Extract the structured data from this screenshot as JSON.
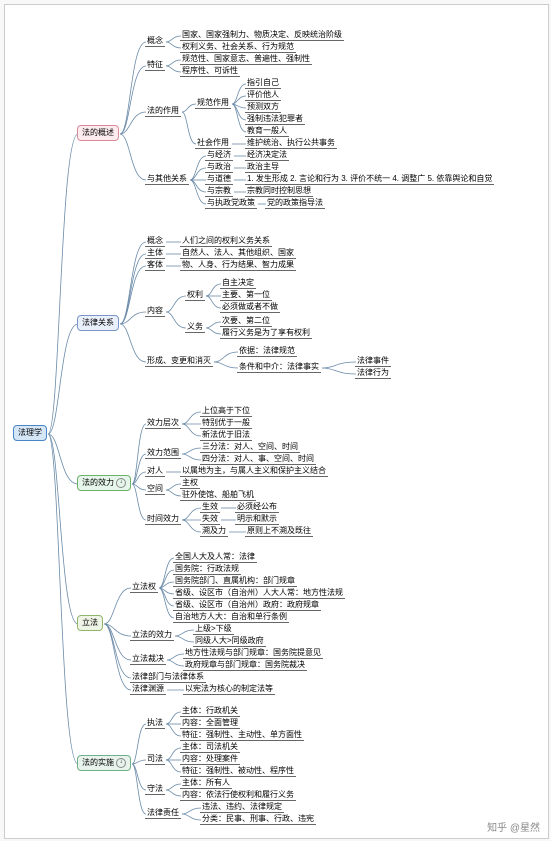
{
  "colors": {
    "root_bg": "#d5e6f7",
    "root_border": "#4a86c5",
    "s1_bg": "#fdecef",
    "s1_border": "#d88a9a",
    "s2_bg": "#eaf0fb",
    "s2_border": "#7a96c8",
    "s3_bg": "#e6f6ea",
    "s3_border": "#6cb06c",
    "s4_bg": "#eef5e6",
    "s4_border": "#8fb56b",
    "s5_bg": "#e8f3ec",
    "s5_border": "#6fb08a",
    "line": "#6a8aa8",
    "text": "#333"
  },
  "root": "法理学",
  "sections": [
    {
      "key": "s1",
      "label": "法的概述"
    },
    {
      "key": "s2",
      "label": "法律关系"
    },
    {
      "key": "s3",
      "label": "法的效力"
    },
    {
      "key": "s4",
      "label": "立法"
    },
    {
      "key": "s5",
      "label": "法的实施"
    }
  ],
  "s1": {
    "gainian": "概念",
    "gainian_items": [
      "国家、国家强制力、物质决定、反映统治阶级",
      "权利义务、社会关系、行为规范"
    ],
    "tezheng": "特征",
    "tezheng_items": [
      "规范性、国家意志、普遍性、强制性",
      "程序性、可诉性"
    ],
    "zuoyong": "法的作用",
    "guifan": "规范作用",
    "guifan_items": [
      "指引自己",
      "评价他人",
      "预测双方",
      "强制违法犯罪者",
      "教育一般人"
    ],
    "shehui": "社会作用",
    "shehui_item": "维护统治、执行公共事务",
    "qita": "与其他关系",
    "jingji": "与经济",
    "jingji_v": "经济决定法",
    "zhengzhi": "与政治",
    "zhengzhi_v": "政治主导",
    "daode": "与道德",
    "daode_v": "1. 发生形成 2. 言论和行为 3. 评价不统一 4. 调整广 5. 依靠舆论和自觉",
    "zongjiao": "与宗教",
    "zongjiao_v": "宗教同时控制思想",
    "zhizheng": "与执政党政策",
    "zhizheng_v": "党的政策指导法"
  },
  "s2": {
    "gainian": "概念",
    "gainian_v": "人们之间的权利义务关系",
    "zhuti": "主体",
    "zhuti_v": "自然人、法人、其他组织、国家",
    "keti": "客体",
    "keti_v": "物、人身、行为结果、智力成果",
    "neirong": "内容",
    "quanli": "权利",
    "quanli_items": [
      "自主决定",
      "主要、第一位",
      "必须做或者不做"
    ],
    "yiwu": "义务",
    "yiwu_items": [
      "次要、第二位",
      "履行义务是为了享有权利"
    ],
    "xingcheng": "形成、变更和消灭",
    "yiju": "依据：法律规范",
    "tiaojian": "条件和中介：法律事实",
    "shijian": "法律事件",
    "xingwei": "法律行为"
  },
  "s3": {
    "cengci": "效力层次",
    "cengci_items": [
      "上位高于下位",
      "特别优于一般",
      "新法优于旧法"
    ],
    "fanwei": "效力范围",
    "sanfen": "三分法：对人、空间、时间",
    "sifen": "四分法：对人、事、空间、时间",
    "duiren": "对人",
    "duiren_v": "以属地为主，与属人主义和保护主义结合",
    "kongjian": "空间",
    "kongjian_items": [
      "主权",
      "驻外使馆、船舶飞机"
    ],
    "shijian": "时间效力",
    "shengxiao": "生效",
    "shengxiao_v": "必须经公布",
    "shixiao": "失效",
    "shixiao_v": "明示和默示",
    "suji": "溯及力",
    "suji_v": "原则上不溯及既往"
  },
  "s4": {
    "lifaquan": "立法权",
    "lifaquan_items": [
      "全国人大及人常：法律",
      "国务院：行政法规",
      "国务院部门、直属机构：部门规章",
      "省级、设区市（自治州）人大人常：地方性法规",
      "省级、设区市（自治州）政府：政府规章",
      "自治地方人大：自治和单行条例"
    ],
    "xiaoli": "立法的效力",
    "xiaoli_items": [
      "上级>下级",
      "同级人大>同级政府"
    ],
    "caijue": "立法裁决",
    "caijue_items": [
      "地方性法规与部门规章：国务院提意见",
      "政府规章与部门规章：国务院裁决"
    ],
    "bumen": "法律部门与法律体系",
    "yuanyuan": "法律渊源",
    "yuanyuan_v": "以宪法为核心的制定法等"
  },
  "s5": {
    "zhifa": "执法",
    "zhifa_items": [
      "主体：行政机关",
      "内容：全面管理",
      "特征：强制性、主动性、单方面性"
    ],
    "sifa": "司法",
    "sifa_items": [
      "主体：司法机关",
      "内容：处理案件",
      "特征：强制性、被动性、程序性"
    ],
    "shoufa": "守法",
    "shoufa_items": [
      "主体：所有人",
      "内容：依法行使权利和履行义务"
    ],
    "zeren": "法律责任",
    "zeren_items": [
      "违法、违约、法律规定",
      "分类：民事、刑事、行政、违宪"
    ]
  },
  "watermark": "知乎 @星然"
}
